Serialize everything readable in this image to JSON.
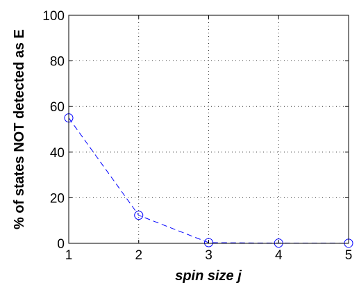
{
  "chart_data": {
    "type": "line",
    "x": [
      1,
      2,
      3,
      4,
      5
    ],
    "series": [
      {
        "values": [
          55,
          12.3,
          0.3,
          0.1,
          0.05
        ],
        "color": "#0000ff",
        "line_style": "dashed",
        "marker": "circle"
      }
    ],
    "xlabel": "spin size j",
    "ylabel": "% of states NOT detected as E",
    "xlim": [
      1,
      5
    ],
    "ylim": [
      0,
      100
    ],
    "xticks": [
      1,
      2,
      3,
      4,
      5
    ],
    "yticks": [
      0,
      20,
      40,
      60,
      80,
      100
    ],
    "grid": true
  }
}
